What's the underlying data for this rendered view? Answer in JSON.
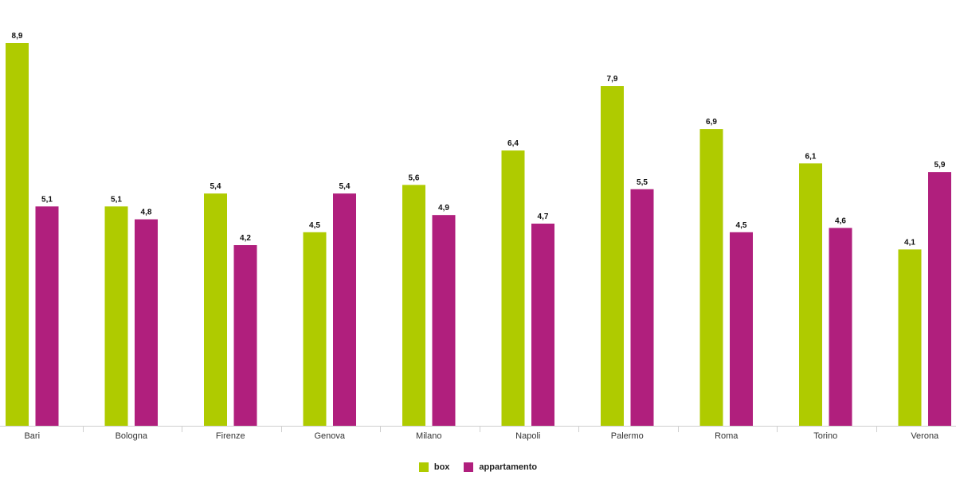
{
  "chart_data": {
    "type": "bar",
    "categories": [
      "Bari",
      "Bologna",
      "Firenze",
      "Genova",
      "Milano",
      "Napoli",
      "Palermo",
      "Roma",
      "Torino",
      "Verona"
    ],
    "series": [
      {
        "name": "box",
        "color": "#afcb00",
        "values": [
          8.9,
          5.1,
          5.4,
          4.5,
          5.6,
          6.4,
          7.9,
          6.9,
          6.1,
          4.1
        ],
        "labels": [
          "8,9",
          "5,1",
          "5,4",
          "4,5",
          "5,6",
          "6,4",
          "7,9",
          "6,9",
          "6,1",
          "4,1"
        ]
      },
      {
        "name": "appartamento",
        "color": "#b01f7d",
        "values": [
          5.1,
          4.8,
          4.2,
          5.4,
          4.9,
          4.7,
          5.5,
          4.5,
          4.6,
          5.9
        ],
        "labels": [
          "5,1",
          "4,8",
          "4,2",
          "5,4",
          "4,9",
          "4,7",
          "5,5",
          "4,5",
          "4,6",
          "5,9"
        ]
      }
    ],
    "ylim": [
      0,
      8.9
    ],
    "grid": false,
    "legend_position": "bottom-center",
    "title": "",
    "xlabel": "",
    "ylabel": ""
  }
}
